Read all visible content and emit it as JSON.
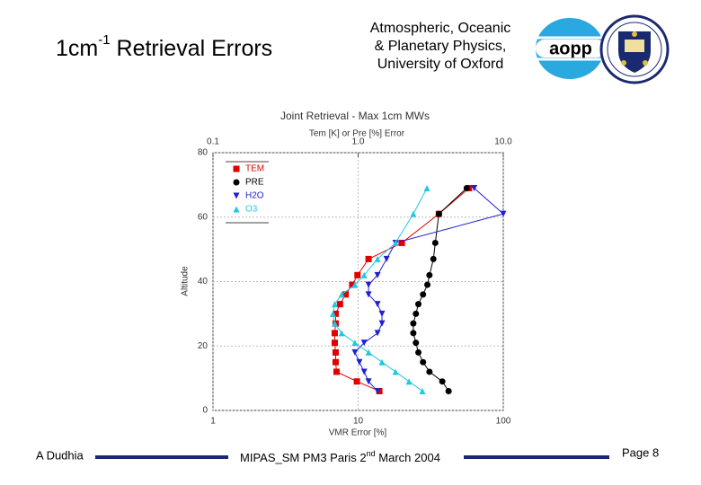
{
  "header": {
    "title": [
      "1cm",
      "-1",
      " Retrieval Errors"
    ],
    "institute": [
      "Atmospheric, Oceanic",
      "& Planetary Physics,",
      "University of Oxford"
    ],
    "logo": "aopp"
  },
  "footer": {
    "author": "A Dudhia",
    "event": [
      "MIPAS_SM PM3 Paris 2",
      "nd",
      " March 2004"
    ],
    "page": "Page 8"
  },
  "chart_data": {
    "type": "profile",
    "title": "Joint Retrieval - Max 1cm MWs",
    "x2label": "Tem [K] or Pre [%] Error",
    "xlabel": "VMR Error [%]",
    "ylabel": "Altitude",
    "xscale": "log",
    "xlim": [
      1,
      100
    ],
    "xticks": [
      1,
      10,
      100
    ],
    "x2lim": [
      0.1,
      10
    ],
    "x2ticks": [
      0.1,
      {
        "value": 1,
        "label": "1.0"
      },
      {
        "value": 10,
        "label": "10.0"
      }
    ],
    "ylim": [
      0,
      80
    ],
    "yticks": [
      0,
      20,
      40,
      60,
      80
    ],
    "grid": true,
    "legend": "upper left",
    "y": [
      6,
      9,
      12,
      15,
      18,
      21,
      24,
      27,
      30,
      33,
      36,
      39,
      42,
      47,
      52,
      61,
      69
    ],
    "series": [
      {
        "name": "TEM",
        "color": "#e00000",
        "marker": "square",
        "axis": "x2",
        "values": [
          1.4,
          0.98,
          0.71,
          0.7,
          0.7,
          0.69,
          0.69,
          0.7,
          0.7,
          0.75,
          0.82,
          0.91,
          0.99,
          1.18,
          2.0,
          3.6,
          5.8
        ]
      },
      {
        "name": "PRE",
        "color": "#000000",
        "marker": "circle",
        "axis": "x2",
        "values": [
          4.2,
          3.8,
          3.1,
          2.8,
          2.6,
          2.5,
          2.4,
          2.4,
          2.5,
          2.6,
          2.8,
          3.0,
          3.1,
          3.3,
          3.4,
          3.6,
          5.6
        ]
      },
      {
        "name": "H2O",
        "color": "#2020d0",
        "marker": "triangle-down",
        "values": [
          13.6,
          11.8,
          11.0,
          10.2,
          9.5,
          11.0,
          13.6,
          14.6,
          14.6,
          13.6,
          11.8,
          11.8,
          13.6,
          15.7,
          18.1,
          100,
          63
        ]
      },
      {
        "name": "O3",
        "color": "#20c8e0",
        "marker": "triangle-up",
        "values": [
          27.7,
          22.4,
          18.1,
          14.6,
          11.8,
          9.5,
          7.7,
          6.9,
          6.7,
          6.9,
          7.7,
          9.5,
          11.0,
          13.6,
          18.1,
          24.0,
          29.8
        ]
      }
    ]
  }
}
